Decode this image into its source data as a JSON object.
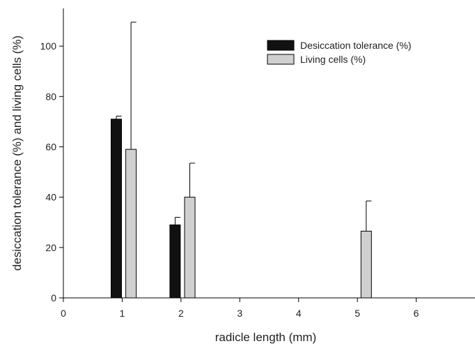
{
  "chart_data": {
    "type": "bar",
    "xlabel": "radicle length (mm)",
    "ylabel": "desiccation tolerance (%) and living cells (%)",
    "xlim": [
      0,
      7
    ],
    "ylim": [
      0,
      115
    ],
    "x_ticks": [
      "0",
      "1",
      "2",
      "3",
      "4",
      "5",
      "6"
    ],
    "y_ticks": [
      "0",
      "20",
      "40",
      "60",
      "80",
      "100"
    ],
    "legend_position": "top-right",
    "series": [
      {
        "name": "Desiccation tolerance (%)",
        "color": "#111111",
        "x": [
          0.9,
          1.9
        ],
        "values": [
          71,
          29
        ],
        "error": [
          1.2,
          3
        ]
      },
      {
        "name": "Living cells (%)",
        "color": "#d0d0d0",
        "x": [
          1.15,
          2.15,
          5.15
        ],
        "values": [
          59,
          40,
          26.5
        ],
        "error": [
          50.5,
          13.5,
          12
        ]
      }
    ]
  }
}
